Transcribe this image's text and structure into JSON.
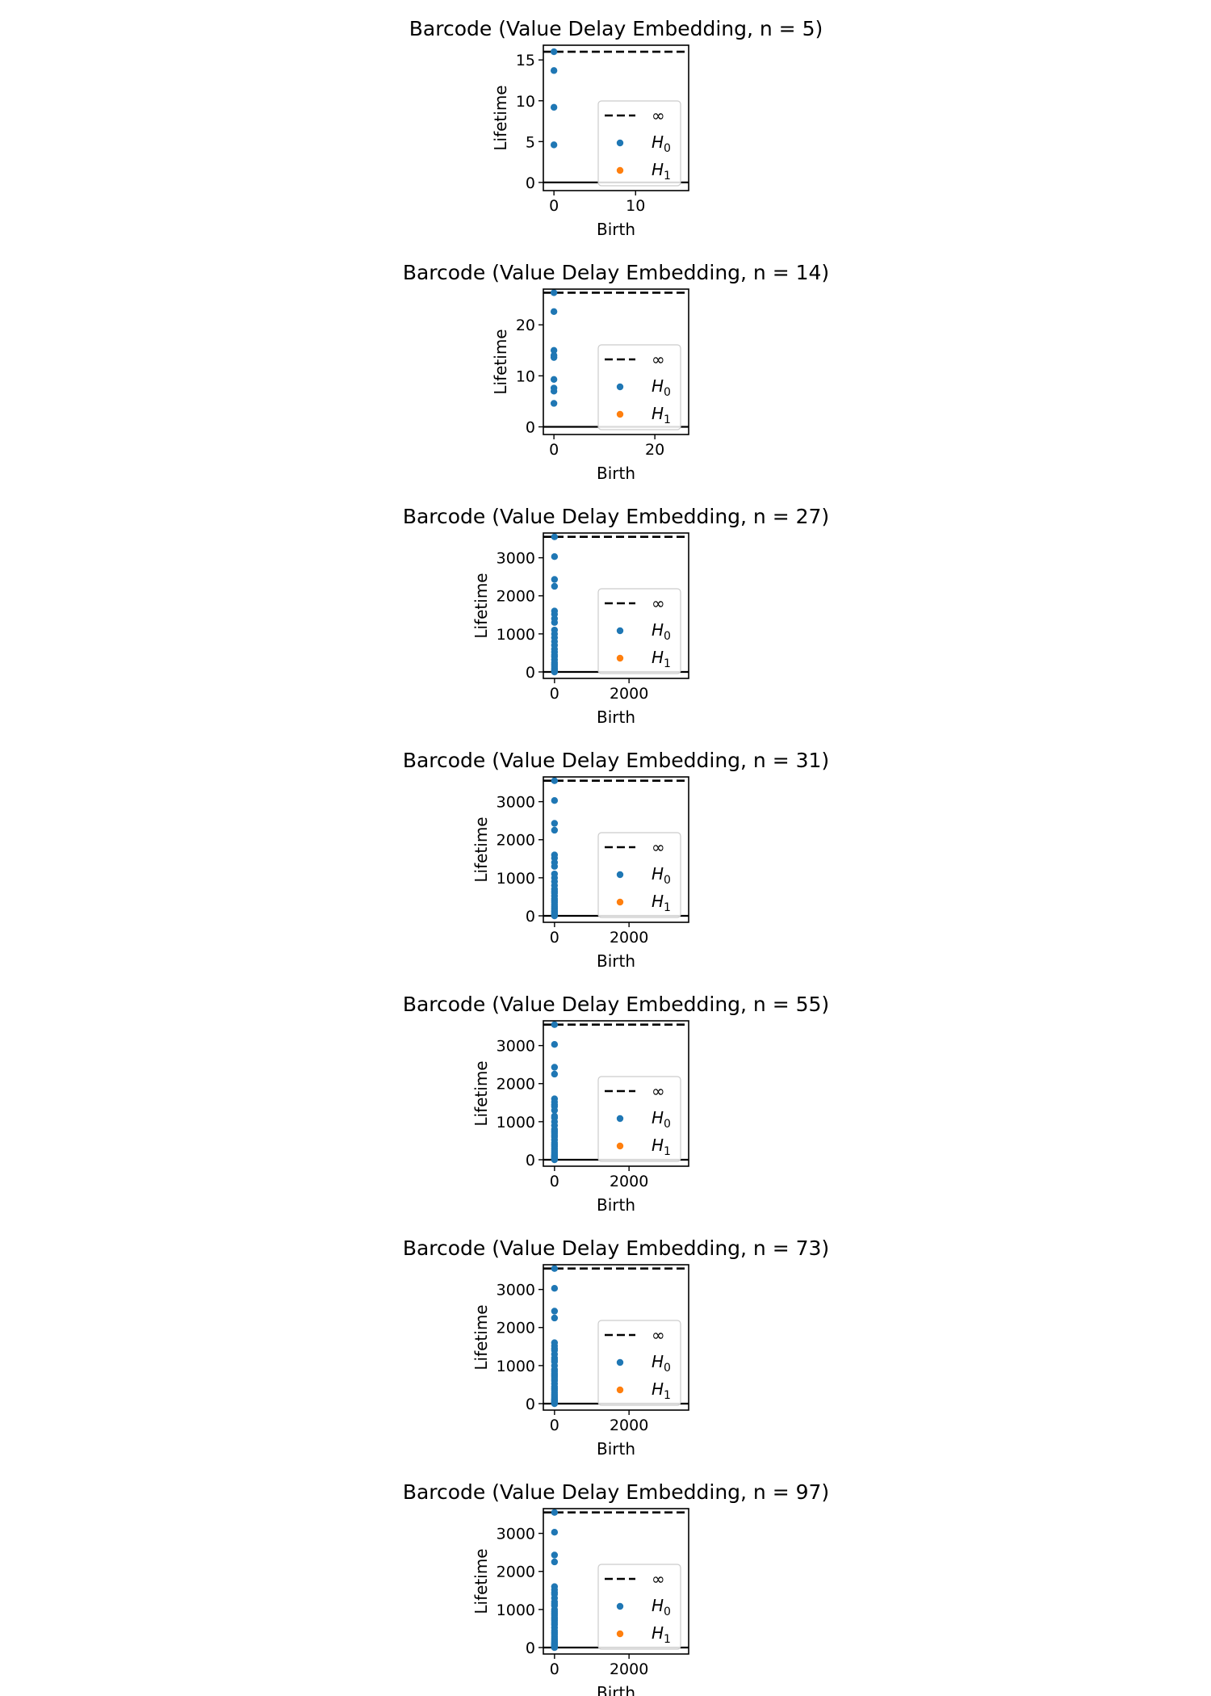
{
  "colors": {
    "h0": "#1f77b4",
    "h1": "#ff7f0e",
    "infinity_line": "#000000",
    "zero_line": "#000000"
  },
  "chart_data": [
    {
      "type": "scatter",
      "title": "Barcode (Value Delay Embedding, n = 5)",
      "xlabel": "Birth",
      "ylabel": "Lifetime",
      "xlim": [
        -1.3,
        16.5
      ],
      "ylim": [
        -1,
        16.8
      ],
      "xticks": [
        0,
        10
      ],
      "yticks": [
        0,
        5,
        10,
        15
      ],
      "xtick_labels": [
        "0",
        "10"
      ],
      "ytick_labels": [
        "0",
        "5",
        "10",
        "15"
      ],
      "infinity_value": 16,
      "legend": {
        "position": "lower right",
        "entries": [
          "∞",
          "H0",
          "H1"
        ]
      },
      "series": [
        {
          "name": "H0",
          "x": [
            0,
            0,
            0,
            0
          ],
          "y": [
            16.0,
            13.7,
            9.2,
            4.6
          ]
        },
        {
          "name": "H1",
          "x": [],
          "y": []
        }
      ]
    },
    {
      "type": "scatter",
      "title": "Barcode (Value Delay Embedding, n = 14)",
      "xlabel": "Birth",
      "ylabel": "Lifetime",
      "xlim": [
        -2.1,
        26.7
      ],
      "ylim": [
        -1.5,
        27.0
      ],
      "xticks": [
        0,
        20
      ],
      "yticks": [
        0,
        10,
        20
      ],
      "xtick_labels": [
        "0",
        "20"
      ],
      "ytick_labels": [
        "0",
        "10",
        "20"
      ],
      "infinity_value": 26.3,
      "legend": {
        "position": "lower right",
        "entries": [
          "∞",
          "H0",
          "H1"
        ]
      },
      "series": [
        {
          "name": "H0",
          "x": [
            0,
            0,
            0,
            0,
            0,
            0,
            0,
            0,
            0
          ],
          "y": [
            26.3,
            22.6,
            15.0,
            14.0,
            13.6,
            9.3,
            7.6,
            7.0,
            4.6
          ]
        },
        {
          "name": "H1",
          "x": [],
          "y": []
        }
      ]
    },
    {
      "type": "scatter",
      "title": "Barcode (Value Delay Embedding, n = 27)",
      "xlabel": "Birth",
      "ylabel": "Lifetime",
      "xlim": [
        -300,
        3600
      ],
      "ylim": [
        -170,
        3650
      ],
      "xticks": [
        0,
        2000
      ],
      "yticks": [
        0,
        1000,
        2000,
        3000
      ],
      "xtick_labels": [
        "0",
        "2000"
      ],
      "ytick_labels": [
        "0",
        "1000",
        "2000",
        "3000"
      ],
      "infinity_value": 3550,
      "legend": {
        "position": "lower right",
        "entries": [
          "∞",
          "H0",
          "H1"
        ]
      },
      "series": [
        {
          "name": "H0",
          "x": [
            0,
            0,
            0,
            0,
            0,
            0,
            0,
            0,
            0,
            0,
            0,
            0,
            0,
            0,
            0,
            0,
            0,
            0,
            0,
            0,
            0,
            0,
            0,
            0,
            0,
            0
          ],
          "y": [
            3550,
            3030,
            2430,
            2250,
            1600,
            1520,
            1400,
            1300,
            1100,
            1000,
            900,
            800,
            700,
            600,
            520,
            450,
            400,
            320,
            250,
            200,
            150,
            100,
            60,
            30,
            10,
            0
          ]
        },
        {
          "name": "H1",
          "x": [],
          "y": []
        }
      ]
    },
    {
      "type": "scatter",
      "title": "Barcode (Value Delay Embedding, n = 31)",
      "xlabel": "Birth",
      "ylabel": "Lifetime",
      "xlim": [
        -300,
        3600
      ],
      "ylim": [
        -170,
        3650
      ],
      "xticks": [
        0,
        2000
      ],
      "yticks": [
        0,
        1000,
        2000,
        3000
      ],
      "xtick_labels": [
        "0",
        "2000"
      ],
      "ytick_labels": [
        "0",
        "1000",
        "2000",
        "3000"
      ],
      "infinity_value": 3550,
      "legend": {
        "position": "lower right",
        "entries": [
          "∞",
          "H0",
          "H1"
        ]
      },
      "series": [
        {
          "name": "H0",
          "x": [
            0,
            0,
            0,
            0,
            0,
            0,
            0,
            0,
            0,
            0,
            0,
            0,
            0,
            0,
            0,
            0,
            0,
            0,
            0,
            0,
            0,
            0,
            0,
            0,
            0,
            0,
            0,
            0,
            0,
            0
          ],
          "y": [
            3550,
            3030,
            2430,
            2250,
            1600,
            1520,
            1400,
            1300,
            1100,
            1000,
            900,
            800,
            700,
            650,
            600,
            520,
            450,
            400,
            350,
            300,
            250,
            200,
            150,
            120,
            100,
            60,
            30,
            20,
            10,
            0
          ]
        },
        {
          "name": "H1",
          "x": [],
          "y": []
        }
      ]
    },
    {
      "type": "scatter",
      "title": "Barcode (Value Delay Embedding, n = 55)",
      "xlabel": "Birth",
      "ylabel": "Lifetime",
      "xlim": [
        -300,
        3600
      ],
      "ylim": [
        -170,
        3650
      ],
      "xticks": [
        0,
        2000
      ],
      "yticks": [
        0,
        1000,
        2000,
        3000
      ],
      "xtick_labels": [
        "0",
        "2000"
      ],
      "ytick_labels": [
        "0",
        "1000",
        "2000",
        "3000"
      ],
      "infinity_value": 3550,
      "legend": {
        "position": "lower right",
        "entries": [
          "∞",
          "H0",
          "H1"
        ]
      },
      "series": [
        {
          "name": "H0",
          "x": [
            0,
            0,
            0,
            0,
            0,
            0,
            0,
            0,
            0,
            0,
            0,
            0,
            0,
            0,
            0,
            0,
            0,
            0,
            0,
            0,
            0,
            0,
            0,
            0,
            0,
            0,
            0,
            0,
            0,
            0,
            0,
            0,
            0,
            0
          ],
          "y": [
            3550,
            3030,
            2430,
            2250,
            1600,
            1520,
            1450,
            1400,
            1300,
            1150,
            1100,
            1000,
            900,
            800,
            750,
            700,
            650,
            600,
            520,
            450,
            400,
            350,
            300,
            250,
            200,
            150,
            120,
            100,
            80,
            60,
            40,
            20,
            10,
            0
          ]
        },
        {
          "name": "H1",
          "x": [],
          "y": []
        }
      ]
    },
    {
      "type": "scatter",
      "title": "Barcode (Value Delay Embedding, n = 73)",
      "xlabel": "Birth",
      "ylabel": "Lifetime",
      "xlim": [
        -300,
        3600
      ],
      "ylim": [
        -170,
        3650
      ],
      "xticks": [
        0,
        2000
      ],
      "yticks": [
        0,
        1000,
        2000,
        3000
      ],
      "xtick_labels": [
        "0",
        "2000"
      ],
      "ytick_labels": [
        "0",
        "1000",
        "2000",
        "3000"
      ],
      "infinity_value": 3550,
      "legend": {
        "position": "lower right",
        "entries": [
          "∞",
          "H0",
          "H1"
        ]
      },
      "series": [
        {
          "name": "H0",
          "x": [
            0,
            0,
            0,
            0,
            0,
            0,
            0,
            0,
            0,
            0,
            0,
            0,
            0,
            0,
            0,
            0,
            0,
            0,
            0,
            0,
            0,
            0,
            0,
            0,
            0,
            0,
            0,
            0,
            0,
            0,
            0,
            0,
            0,
            0,
            0,
            0
          ],
          "y": [
            3550,
            3030,
            2430,
            2250,
            1600,
            1520,
            1450,
            1400,
            1300,
            1200,
            1150,
            1100,
            1000,
            900,
            850,
            800,
            750,
            700,
            650,
            600,
            520,
            450,
            400,
            350,
            300,
            250,
            200,
            150,
            120,
            100,
            80,
            60,
            40,
            20,
            10,
            0
          ]
        },
        {
          "name": "H1",
          "x": [],
          "y": []
        }
      ]
    },
    {
      "type": "scatter",
      "title": "Barcode (Value Delay Embedding, n = 97)",
      "xlabel": "Birth",
      "ylabel": "Lifetime",
      "xlim": [
        -300,
        3600
      ],
      "ylim": [
        -170,
        3650
      ],
      "xticks": [
        0,
        2000
      ],
      "yticks": [
        0,
        1000,
        2000,
        3000
      ],
      "xtick_labels": [
        "0",
        "2000"
      ],
      "ytick_labels": [
        "0",
        "1000",
        "2000",
        "3000"
      ],
      "infinity_value": 3550,
      "legend": {
        "position": "lower right",
        "entries": [
          "∞",
          "H0",
          "H1"
        ]
      },
      "series": [
        {
          "name": "H0",
          "x": [
            0,
            0,
            0,
            0,
            0,
            0,
            0,
            0,
            0,
            0,
            0,
            0,
            0,
            0,
            0,
            0,
            0,
            0,
            0,
            0,
            0,
            0,
            0,
            0,
            0,
            0,
            0,
            0,
            0,
            0,
            0,
            0,
            0,
            0,
            0,
            0,
            0,
            0
          ],
          "y": [
            3550,
            3030,
            2430,
            2250,
            1600,
            1520,
            1450,
            1400,
            1300,
            1200,
            1150,
            1100,
            1000,
            950,
            900,
            850,
            800,
            750,
            700,
            650,
            600,
            520,
            450,
            400,
            350,
            300,
            250,
            200,
            150,
            120,
            100,
            80,
            60,
            40,
            20,
            10,
            5,
            0
          ]
        },
        {
          "name": "H1",
          "x": [],
          "y": []
        }
      ]
    }
  ]
}
